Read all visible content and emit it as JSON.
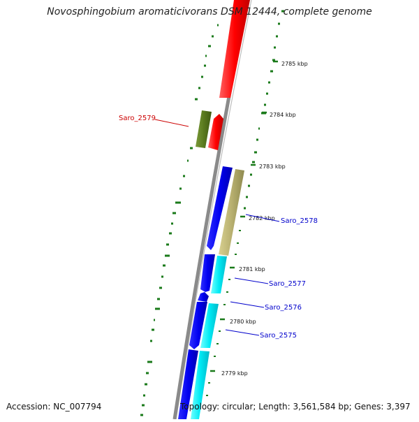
{
  "title": "Novosphingobium aromaticivorans DSM 12444, complete genome",
  "footer": {
    "accession": "Accession: NC_007794",
    "topology": "Topology: circular; Length: 3,561,584 bp; Genes: 3,397"
  },
  "ticks": [
    "2785 kbp",
    "2784 kbp",
    "2783 kbp",
    "2782 kbp",
    "2781 kbp",
    "2780 kbp",
    "2779 kbp"
  ],
  "gene_labels": {
    "saro_2579": "Saro_2579",
    "saro_2578": "Saro_2578",
    "saro_2577": "Saro_2577",
    "saro_2576": "Saro_2576",
    "saro_2575": "Saro_2575"
  },
  "colors": {
    "forward_strand_gene": "#e01010",
    "forward_strand_olive": "#5a7a1e",
    "reverse_blue": "#0a0ae0",
    "reverse_cyan": "#00e6f0",
    "reverse_khaki": "#b8b070",
    "backbone": "#8a8a8a",
    "gc_marks": "#1a7a1a",
    "label_red": "#cc0000",
    "label_blue": "#0000cc"
  }
}
